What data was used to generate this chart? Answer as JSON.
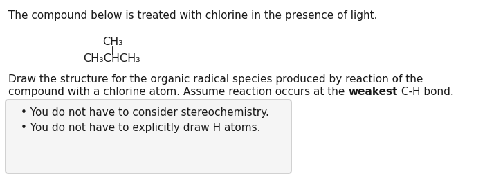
{
  "background_color": "#ffffff",
  "text_color": "#1a1a1a",
  "title_line": "The compound below is treated with chlorine in the presence of light.",
  "compound_ch3_top": "CH₃",
  "compound_main": "CH₃CHCH₃",
  "para1": "Draw the structure for the organic radical species produced by reaction of the",
  "para2_before_bold": "compound with a chlorine atom. Assume reaction occurs at the ",
  "para2_bold": "weakest",
  "para2_after_bold": " C-H bond.",
  "bullet1": "• You do not have to consider stereochemistry.",
  "bullet2": "• You do not have to explicitly draw H atoms.",
  "main_fontsize": 11.0,
  "compound_fontsize": 11.5,
  "box_edge_color": "#c8c8c8",
  "box_face_color": "#f5f5f5"
}
